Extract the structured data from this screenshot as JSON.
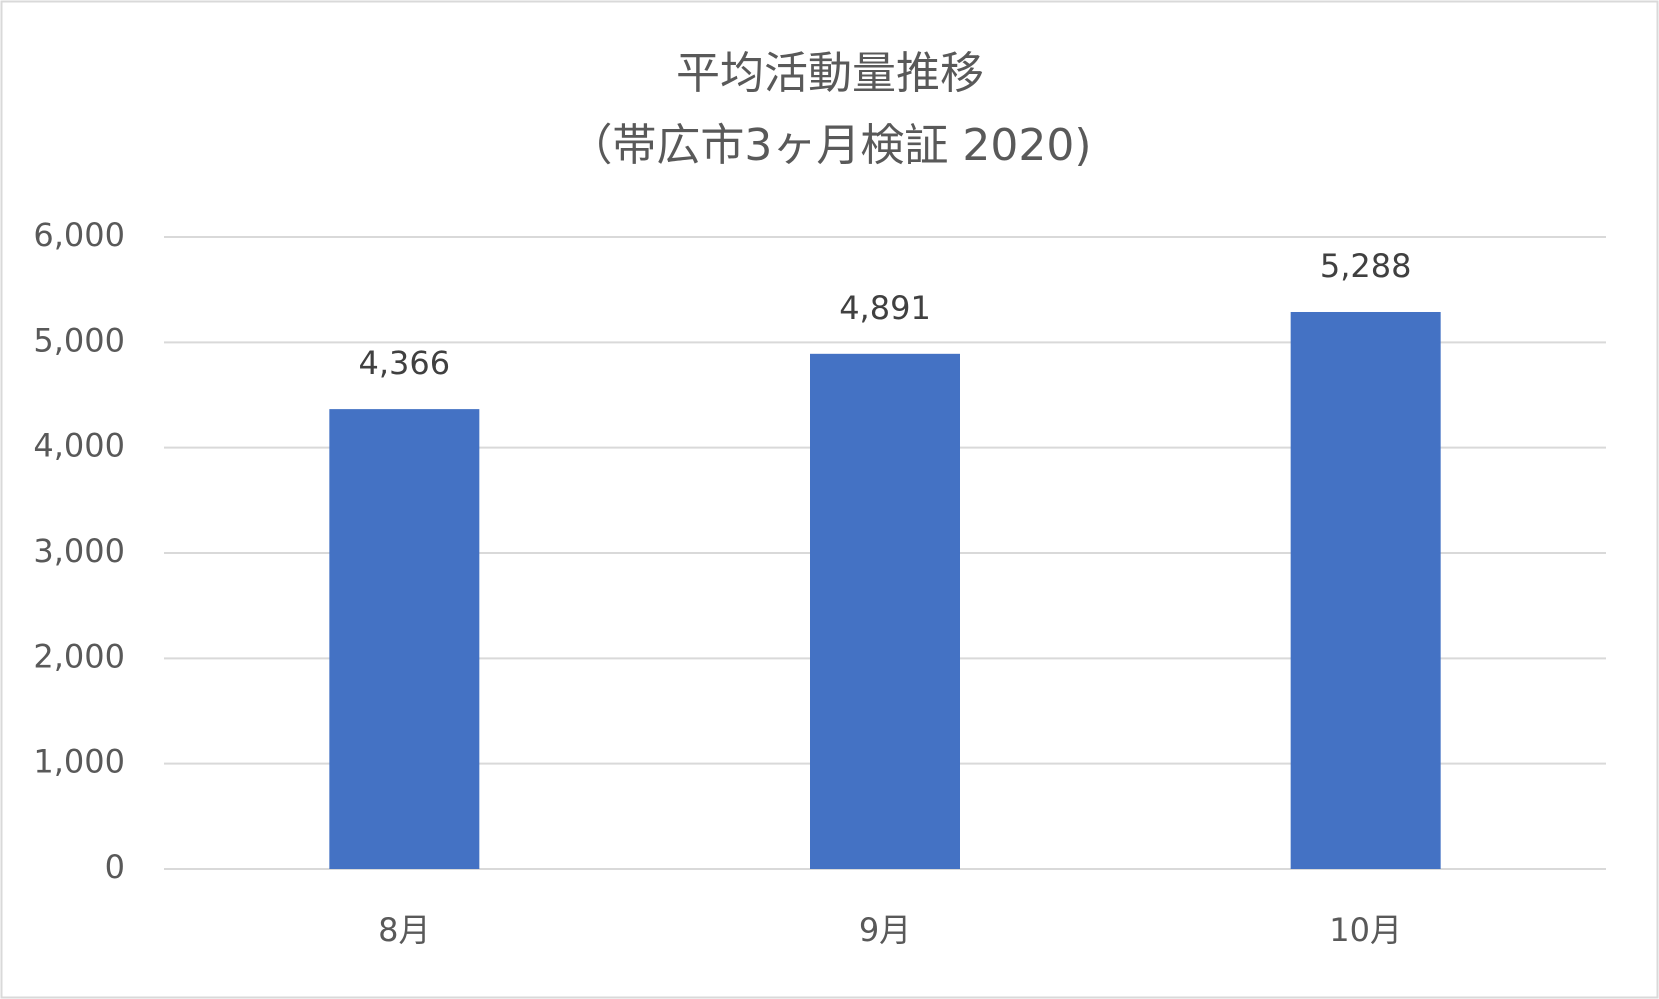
{
  "chart_data": {
    "type": "bar",
    "title": "平均活動量推移",
    "subtitle": "（帯広市3ヶ月検証 2020)",
    "categories": [
      "8月",
      "9月",
      "10月"
    ],
    "values": [
      4366,
      4891,
      5288
    ],
    "value_labels": [
      "4,366",
      "4,891",
      "5,288"
    ],
    "color": "#4472c4",
    "ylim": [
      0,
      6000
    ],
    "yticks": [
      0,
      {
        "value": 1000,
        "label": "1,000"
      },
      {
        "value": 2000,
        "label": "2,000"
      },
      {
        "value": 3000,
        "label": "3,000"
      },
      {
        "value": 4000,
        "label": "4,000"
      },
      {
        "value": 5000,
        "label": "5,000"
      },
      {
        "value": 6000,
        "label": "6,000"
      }
    ],
    "grid": true
  }
}
